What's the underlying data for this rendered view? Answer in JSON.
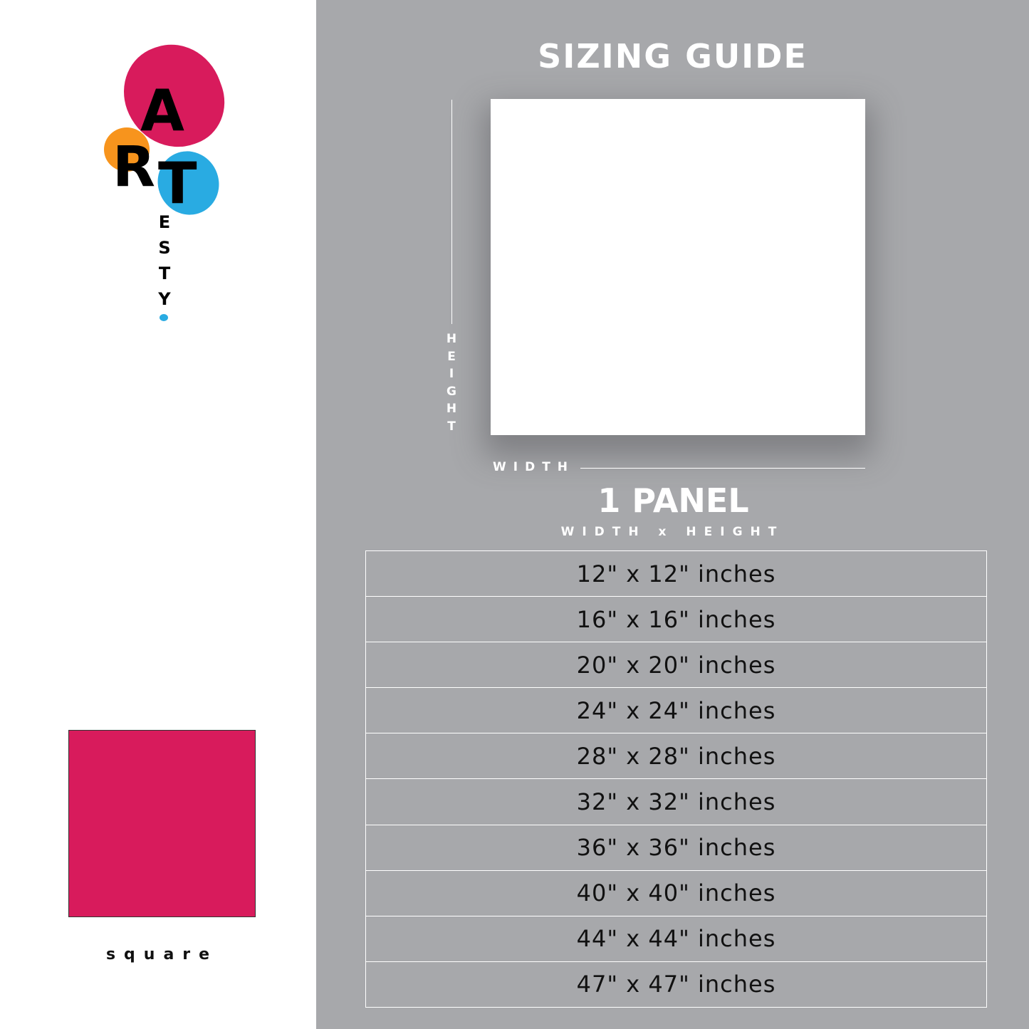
{
  "logo": {
    "letters": [
      "A",
      "R",
      "T"
    ],
    "vertical_letters": [
      "E",
      "S",
      "T",
      "Y"
    ],
    "colors": {
      "pink": "#d81b5c",
      "orange": "#f7941d",
      "blue": "#29abe2"
    }
  },
  "shape": {
    "label": "square",
    "color": "#d81b5c"
  },
  "guide": {
    "title": "SIZING GUIDE",
    "height_label": [
      "H",
      "E",
      "I",
      "G",
      "H",
      "T"
    ],
    "width_label": "WIDTH",
    "panel_title": "1 PANEL",
    "panel_subtitle": "WIDTH x HEIGHT",
    "sizes": [
      "12\" x 12\" inches",
      "16\" x 16\" inches",
      "20\" x 20\" inches",
      "24\" x 24\" inches",
      "28\" x 28\" inches",
      "32\" x 32\" inches",
      "36\" x 36\" inches",
      "40\" x 40\" inches",
      "44\" x 44\" inches",
      "47\" x 47\" inches"
    ],
    "background": "#a7a8ab"
  }
}
